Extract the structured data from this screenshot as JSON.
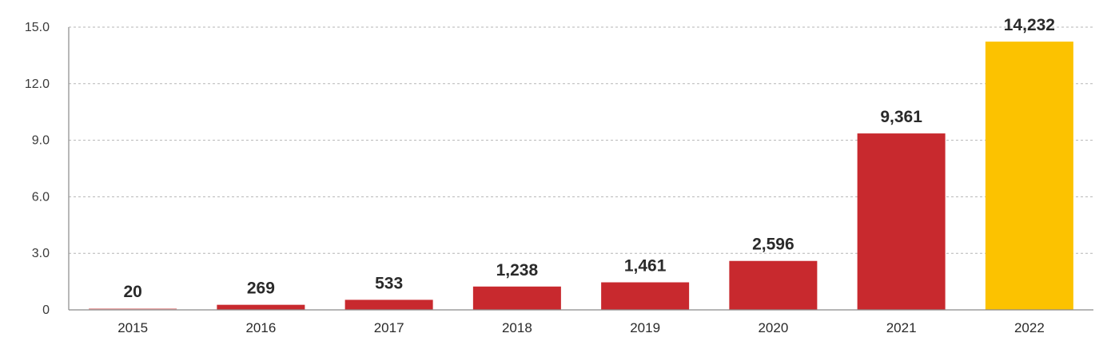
{
  "chart_data": {
    "type": "bar",
    "title": "",
    "xlabel": "",
    "ylabel": "",
    "categories": [
      "2015",
      "2016",
      "2017",
      "2018",
      "2019",
      "2020",
      "2021",
      "2022"
    ],
    "values": [
      20,
      269,
      533,
      1238,
      1461,
      2596,
      9361,
      14232
    ],
    "value_labels": [
      "20",
      "269",
      "533",
      "1,238",
      "1,461",
      "2,596",
      "9,361",
      "14,232"
    ],
    "y_ticks": [
      0,
      3,
      6,
      9,
      12,
      15
    ],
    "y_tick_labels": [
      "0",
      "3.0",
      "6.0",
      "9.0",
      "12.0",
      "15.0"
    ],
    "ylim": [
      0,
      15000
    ],
    "grid": true,
    "colors": {
      "default_bar": "#c8292e",
      "highlight_bar": "#fcc200",
      "first_bar": "#e8a6a6"
    },
    "highlight_category": "2022"
  }
}
